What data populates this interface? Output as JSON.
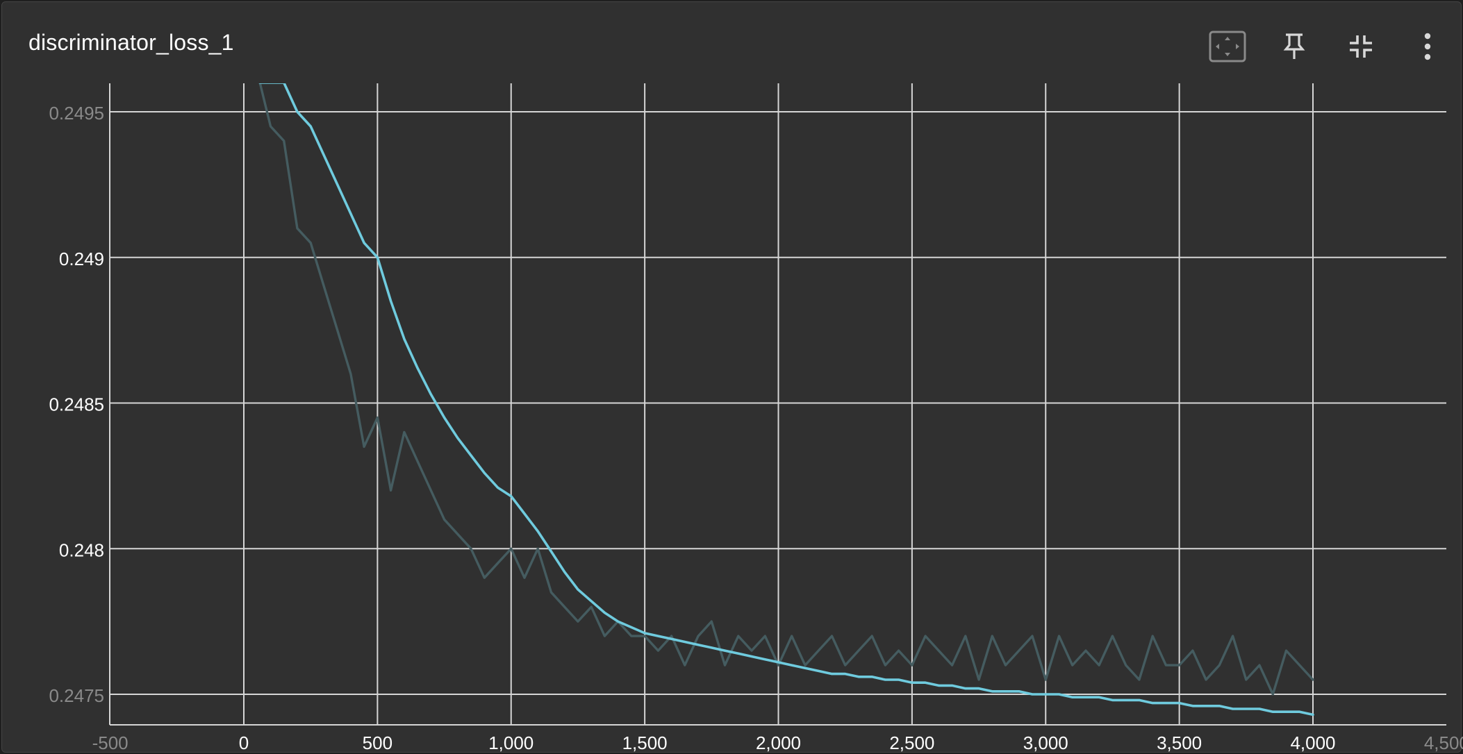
{
  "card": {
    "title": "discriminator_loss_1"
  },
  "toolbar": {
    "icons": [
      "fit-domain-icon",
      "pin-icon",
      "collapse-icon",
      "more-vert-icon"
    ]
  },
  "colors": {
    "background": "#303030",
    "grid": "#d6d6d6",
    "raw_series": "#455c60",
    "smoothed_series": "#6fcbde",
    "text": "#ffffff",
    "dim_text": "#8a8a8a"
  },
  "chart_data": {
    "type": "line",
    "title": "discriminator_loss_1",
    "xlabel": "",
    "ylabel": "",
    "xlim": [
      -500,
      4500
    ],
    "ylim": [
      0.2474,
      0.2496
    ],
    "grid": true,
    "x_ticks": [
      "-500",
      "0",
      "500",
      "1,000",
      "1,500",
      "2,000",
      "2,500",
      "3,000",
      "3,500",
      "4,000",
      "4,500"
    ],
    "x_tick_values": [
      -500,
      0,
      500,
      1000,
      1500,
      2000,
      2500,
      3000,
      3500,
      4000,
      4500
    ],
    "y_ticks": [
      "0.2475",
      "0.248",
      "0.2485",
      "0.249",
      "0.2495"
    ],
    "y_tick_values": [
      0.2475,
      0.248,
      0.2485,
      0.249,
      0.2495
    ],
    "series": [
      {
        "role": "raw",
        "x": [
          60,
          100,
          150,
          200,
          250,
          300,
          350,
          400,
          450,
          500,
          550,
          600,
          650,
          700,
          750,
          800,
          850,
          900,
          950,
          1000,
          1050,
          1100,
          1150,
          1200,
          1250,
          1300,
          1350,
          1400,
          1450,
          1500,
          1550,
          1600,
          1650,
          1700,
          1750,
          1800,
          1850,
          1900,
          1950,
          2000,
          2050,
          2100,
          2150,
          2200,
          2250,
          2300,
          2350,
          2400,
          2450,
          2500,
          2550,
          2600,
          2650,
          2700,
          2750,
          2800,
          2850,
          2900,
          2950,
          3000,
          3050,
          3100,
          3150,
          3200,
          3250,
          3300,
          3350,
          3400,
          3450,
          3500,
          3550,
          3600,
          3650,
          3700,
          3750,
          3800,
          3850,
          3900,
          3950,
          4000
        ],
        "y": [
          0.2496,
          0.24945,
          0.2494,
          0.2491,
          0.24905,
          0.2489,
          0.24875,
          0.2486,
          0.24835,
          0.24845,
          0.2482,
          0.2484,
          0.2483,
          0.2482,
          0.2481,
          0.24805,
          0.248,
          0.2479,
          0.24795,
          0.248,
          0.2479,
          0.248,
          0.24785,
          0.2478,
          0.24775,
          0.2478,
          0.2477,
          0.24775,
          0.2477,
          0.2477,
          0.24765,
          0.2477,
          0.2476,
          0.2477,
          0.24775,
          0.2476,
          0.2477,
          0.24765,
          0.2477,
          0.2476,
          0.2477,
          0.2476,
          0.24765,
          0.2477,
          0.2476,
          0.24765,
          0.2477,
          0.2476,
          0.24765,
          0.2476,
          0.2477,
          0.24765,
          0.2476,
          0.2477,
          0.24755,
          0.2477,
          0.2476,
          0.24765,
          0.2477,
          0.24755,
          0.2477,
          0.2476,
          0.24765,
          0.2476,
          0.2477,
          0.2476,
          0.24755,
          0.2477,
          0.2476,
          0.2476,
          0.24765,
          0.24755,
          0.2476,
          0.2477,
          0.24755,
          0.2476,
          0.2475,
          0.24765,
          0.2476,
          0.24755
        ]
      },
      {
        "role": "smoothed",
        "x": [
          60,
          100,
          150,
          200,
          250,
          300,
          350,
          400,
          450,
          500,
          550,
          600,
          650,
          700,
          750,
          800,
          850,
          900,
          950,
          1000,
          1050,
          1100,
          1150,
          1200,
          1250,
          1300,
          1350,
          1400,
          1450,
          1500,
          1550,
          1600,
          1650,
          1700,
          1750,
          1800,
          1850,
          1900,
          1950,
          2000,
          2050,
          2100,
          2150,
          2200,
          2250,
          2300,
          2350,
          2400,
          2450,
          2500,
          2550,
          2600,
          2650,
          2700,
          2750,
          2800,
          2850,
          2900,
          2950,
          3000,
          3050,
          3100,
          3150,
          3200,
          3250,
          3300,
          3350,
          3400,
          3450,
          3500,
          3550,
          3600,
          3650,
          3700,
          3750,
          3800,
          3850,
          3900,
          3950,
          4000
        ],
        "y": [
          0.2496,
          0.2496,
          0.2496,
          0.2495,
          0.24945,
          0.24935,
          0.24925,
          0.24915,
          0.24905,
          0.249,
          0.24885,
          0.24872,
          0.24862,
          0.24853,
          0.24845,
          0.24838,
          0.24832,
          0.24826,
          0.24821,
          0.24818,
          0.24812,
          0.24806,
          0.24799,
          0.24792,
          0.24786,
          0.24782,
          0.24778,
          0.24775,
          0.24773,
          0.24771,
          0.2477,
          0.24769,
          0.24768,
          0.24767,
          0.24766,
          0.24765,
          0.24764,
          0.24763,
          0.24762,
          0.24761,
          0.2476,
          0.24759,
          0.24758,
          0.24757,
          0.24757,
          0.24756,
          0.24756,
          0.24755,
          0.24755,
          0.24754,
          0.24754,
          0.24753,
          0.24753,
          0.24752,
          0.24752,
          0.24751,
          0.24751,
          0.24751,
          0.2475,
          0.2475,
          0.2475,
          0.24749,
          0.24749,
          0.24749,
          0.24748,
          0.24748,
          0.24748,
          0.24747,
          0.24747,
          0.24747,
          0.24746,
          0.24746,
          0.24746,
          0.24745,
          0.24745,
          0.24745,
          0.24744,
          0.24744,
          0.24744,
          0.24743
        ]
      }
    ]
  }
}
